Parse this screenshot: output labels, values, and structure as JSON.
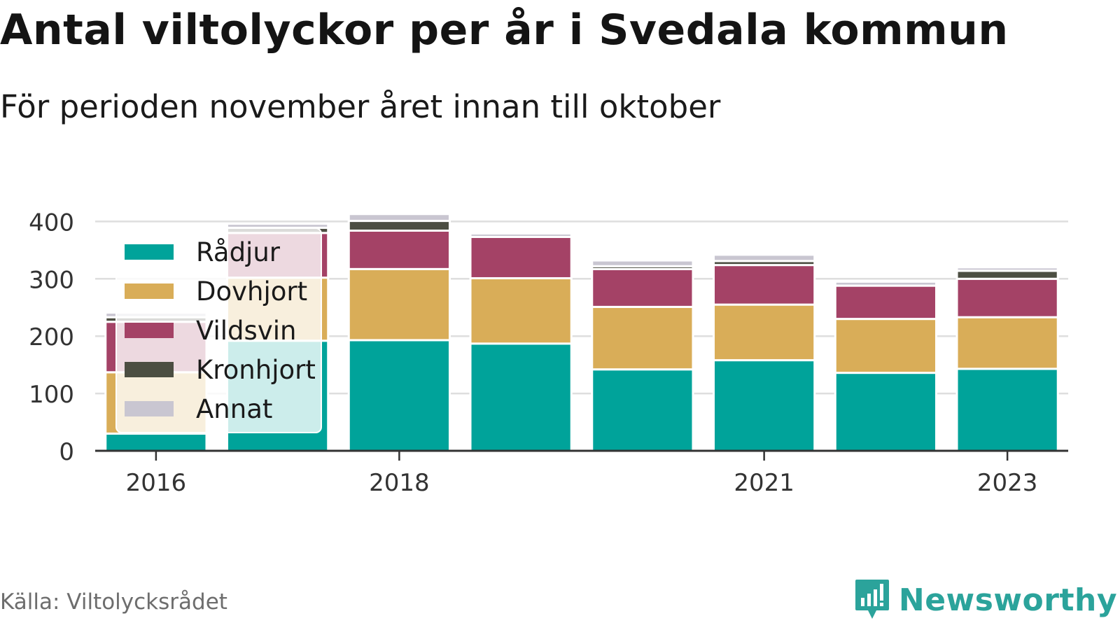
{
  "title": "Antal viltolyckor per år i Svedala kommun",
  "subtitle": "För perioden november året innan till oktober",
  "source": "Källa: Viltolycksrådet",
  "brand": "Newsworthy",
  "brand_icon": "newsworthy-logo-icon",
  "colors": {
    "Rådjur": "#00a39a",
    "Dovhjort": "#d9ad58",
    "Vildsvin": "#a44266",
    "Kronhjort": "#4c4e42",
    "Annat": "#c9c6d1",
    "brand": "#2ba39b"
  },
  "chart_data": {
    "type": "bar",
    "stacked": true,
    "categories": [
      "2016",
      "2017",
      "2018",
      "2019",
      "2020",
      "2021",
      "2022",
      "2023"
    ],
    "x_tick_labels": [
      "2016",
      "2018",
      "2021",
      "2023"
    ],
    "y_ticks": [
      0,
      100,
      200,
      300,
      400
    ],
    "ylim": [
      0,
      420
    ],
    "grid": true,
    "legend_position": "top-left",
    "series": [
      {
        "name": "Rådjur",
        "values": [
          30,
          192,
          193,
          187,
          142,
          158,
          136,
          143
        ]
      },
      {
        "name": "Dovhjort",
        "values": [
          107,
          110,
          124,
          114,
          109,
          97,
          94,
          90
        ]
      },
      {
        "name": "Vildsvin",
        "values": [
          88,
          78,
          67,
          72,
          66,
          69,
          58,
          67
        ]
      },
      {
        "name": "Kronhjort",
        "values": [
          8,
          9,
          17,
          0,
          5,
          7,
          0,
          14
        ]
      },
      {
        "name": "Annat",
        "values": [
          8,
          7,
          12,
          6,
          10,
          11,
          7,
          6
        ]
      }
    ]
  }
}
